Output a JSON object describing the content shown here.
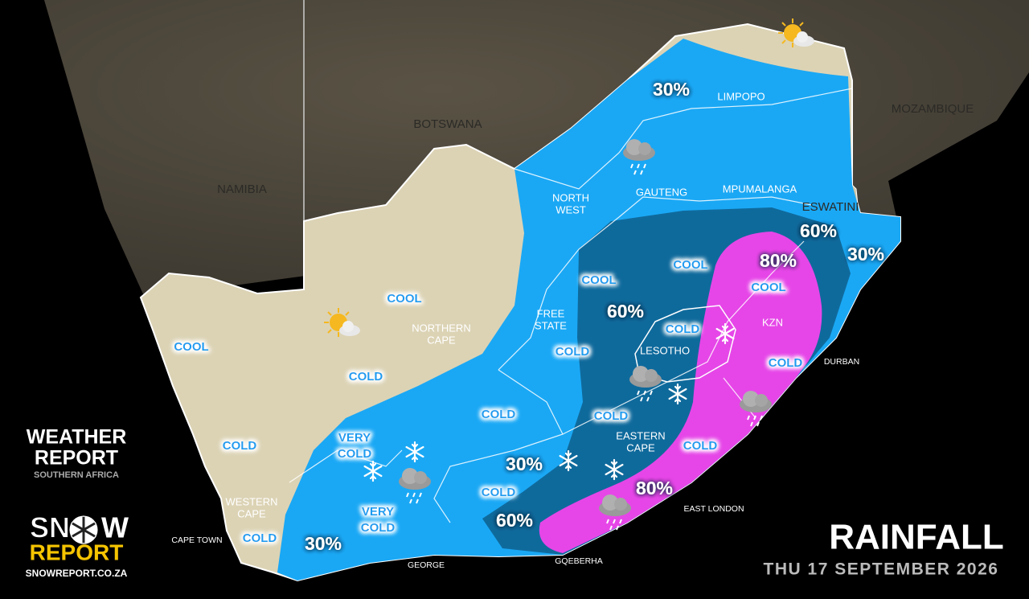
{
  "title": "RAINFALL",
  "date": "THU 17 SEPTEMBER 2026",
  "weather_report_logo": {
    "line1": "WEATHER",
    "line2": "REPORT",
    "tagline": "SOUTHERN AFRICA"
  },
  "snow_report_logo": {
    "snow_left": "SN",
    "snow_right": "W",
    "report": "REPORT",
    "url": "SNOWREPORT.CO.ZA"
  },
  "countries": [
    [
      "NAMIBIA"
    ],
    [
      "BOTSWANA"
    ],
    [
      "MOZAMBIQUE"
    ],
    [
      "ESWATINI"
    ],
    [
      "LESOTHO"
    ]
  ],
  "provinces": [
    [
      "LIMPOPO"
    ],
    [
      "NORTH",
      "WEST"
    ],
    [
      "GAUTENG"
    ],
    [
      "MPUMALANGA"
    ],
    [
      "FREE",
      "STATE"
    ],
    [
      "NORTHERN",
      "CAPE"
    ],
    [
      "KZN"
    ],
    [
      "EASTERN",
      "CAPE"
    ],
    [
      "WESTERN",
      "CAPE"
    ]
  ],
  "cities": [
    [
      "DURBAN"
    ],
    [
      "EAST LONDON"
    ],
    [
      "GQEBERHA"
    ],
    [
      "GEORGE"
    ],
    [
      "CAPE TOWN"
    ]
  ],
  "rain_chances": [
    [
      "30%"
    ],
    [
      "60%"
    ],
    [
      "80%"
    ],
    [
      "30%"
    ],
    [
      "60%"
    ],
    [
      "30%"
    ],
    [
      "80%"
    ],
    [
      "60%"
    ],
    [
      "30%"
    ]
  ],
  "temperature_labels": [
    [
      "COOL"
    ],
    [
      "COOL"
    ],
    [
      "COOL"
    ],
    [
      "COOL"
    ],
    [
      "COOL"
    ],
    [
      "COLD"
    ],
    [
      "COLD"
    ],
    [
      "COLD"
    ],
    [
      "COLD"
    ],
    [
      "COLD"
    ],
    [
      "COLD"
    ],
    [
      "COLD"
    ],
    [
      "COLD"
    ],
    [
      "COLD"
    ],
    [
      "COLD"
    ],
    [
      "VERY",
      "COLD"
    ],
    [
      "VERY",
      "COLD"
    ]
  ]
}
